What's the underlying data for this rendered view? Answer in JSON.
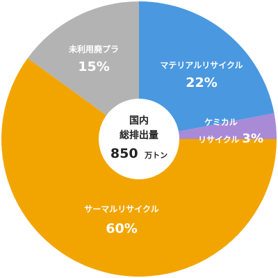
{
  "chart_data": {
    "type": "pie",
    "title": "",
    "center": {
      "line1": "国内",
      "line2": "総排出量",
      "value": "850",
      "unit": "万トン"
    },
    "slices": [
      {
        "label_lines": [
          "マテリアルリサイクル"
        ],
        "value": 22,
        "percent_label": "22%",
        "color": "#4a98e0"
      },
      {
        "label_lines": [
          "ケミカル",
          "リサイクル"
        ],
        "value": 3,
        "percent_label": "3%",
        "color": "#a98ad6"
      },
      {
        "label_lines": [
          "サーマルリサイクル"
        ],
        "value": 60,
        "percent_label": "60%",
        "color": "#f2a500"
      },
      {
        "label_lines": [
          "未利用廃プラ"
        ],
        "value": 15,
        "percent_label": "15%",
        "color": "#b3b3b3"
      }
    ],
    "start": "12 o'clock",
    "direction": "clockwise"
  }
}
